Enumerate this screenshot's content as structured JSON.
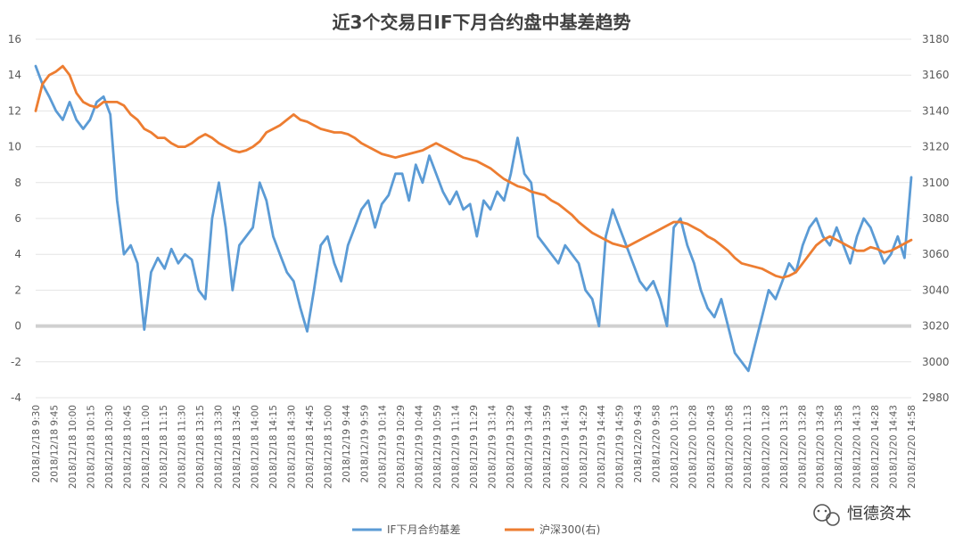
{
  "chart_data": {
    "type": "line",
    "title": "近3个交易日IF下月合约盘中基差趋势",
    "y_left": {
      "ylim": [
        -4,
        16
      ],
      "ticks": [
        -4,
        -2,
        0,
        2,
        4,
        6,
        8,
        10,
        12,
        14,
        16
      ]
    },
    "y_right": {
      "ylim": [
        2980,
        3180
      ],
      "ticks": [
        2980,
        3000,
        3020,
        3040,
        3060,
        3080,
        3100,
        3120,
        3140,
        3160,
        3180
      ]
    },
    "x_tick_labels": [
      "2018/12/18 9:30",
      "2018/12/18 9:45",
      "2018/12/18 10:00",
      "2018/12/18 10:15",
      "2018/12/18 10:30",
      "2018/12/18 10:45",
      "2018/12/18 11:00",
      "2018/12/18 11:15",
      "2018/12/18 11:30",
      "2018/12/18 13:15",
      "2018/12/18 13:30",
      "2018/12/18 13:45",
      "2018/12/18 14:00",
      "2018/12/18 14:15",
      "2018/12/18 14:30",
      "2018/12/18 14:45",
      "2018/12/18 15:00",
      "2018/12/19 9:44",
      "2018/12/19 9:59",
      "2018/12/19 10:14",
      "2018/12/19 10:29",
      "2018/12/19 10:44",
      "2018/12/19 10:59",
      "2018/12/19 11:14",
      "2018/12/19 11:29",
      "2018/12/19 13:14",
      "2018/12/19 13:29",
      "2018/12/19 13:44",
      "2018/12/19 13:59",
      "2018/12/19 14:14",
      "2018/12/19 14:29",
      "2018/12/19 14:44",
      "2018/12/19 14:59",
      "2018/12/20 9:43",
      "2018/12/20 9:58",
      "2018/12/20 10:13",
      "2018/12/20 10:28",
      "2018/12/20 10:43",
      "2018/12/20 10:58",
      "2018/12/20 11:13",
      "2018/12/20 11:28",
      "2018/12/20 13:13",
      "2018/12/20 13:28",
      "2018/12/20 13:43",
      "2018/12/20 13:58",
      "2018/12/20 14:13",
      "2018/12/20 14:28",
      "2018/12/20 14:43",
      "2018/12/20 14:58"
    ],
    "series": [
      {
        "name": "IF下月合约基差",
        "axis": "left",
        "color": "#5B9BD5",
        "values": [
          14.5,
          13.5,
          12.8,
          12.0,
          11.5,
          12.5,
          11.5,
          11.0,
          11.5,
          12.5,
          12.8,
          11.8,
          7.0,
          4.0,
          4.5,
          3.5,
          -0.2,
          3.0,
          3.8,
          3.2,
          4.3,
          3.5,
          4.0,
          3.7,
          2.0,
          1.5,
          6.0,
          8.0,
          5.5,
          2.0,
          4.5,
          5.0,
          5.5,
          8.0,
          7.0,
          5.0,
          4.0,
          3.0,
          2.5,
          1.0,
          -0.3,
          2.0,
          4.5,
          5.0,
          3.5,
          2.5,
          4.5,
          5.5,
          6.5,
          7.0,
          5.5,
          6.8,
          7.3,
          8.5,
          8.5,
          7.0,
          9.0,
          8.0,
          9.5,
          8.5,
          7.5,
          6.8,
          7.5,
          6.5,
          6.8,
          5.0,
          7.0,
          6.5,
          7.5,
          7.0,
          8.5,
          10.5,
          8.5,
          8.0,
          5.0,
          4.5,
          4.0,
          3.5,
          4.5,
          4.0,
          3.5,
          2.0,
          1.5,
          0.0,
          5.0,
          6.5,
          5.5,
          4.5,
          3.5,
          2.5,
          2.0,
          2.5,
          1.5,
          0.0,
          5.5,
          6.0,
          4.5,
          3.5,
          2.0,
          1.0,
          0.5,
          1.5,
          0.0,
          -1.5,
          -2.0,
          -2.5,
          -1.0,
          0.5,
          2.0,
          1.5,
          2.5,
          3.5,
          3.0,
          4.5,
          5.5,
          6.0,
          5.0,
          4.5,
          5.5,
          4.5,
          3.5,
          5.0,
          6.0,
          5.5,
          4.5,
          3.5,
          4.0,
          5.0,
          3.8,
          8.3
        ]
      },
      {
        "name": "沪深300(右)",
        "axis": "right",
        "color": "#ED7D31",
        "values": [
          3140,
          3155,
          3160,
          3162,
          3165,
          3160,
          3150,
          3145,
          3143,
          3142,
          3145,
          3145,
          3145,
          3143,
          3138,
          3135,
          3130,
          3128,
          3125,
          3125,
          3122,
          3120,
          3120,
          3122,
          3125,
          3127,
          3125,
          3122,
          3120,
          3118,
          3117,
          3118,
          3120,
          3123,
          3128,
          3130,
          3132,
          3135,
          3138,
          3135,
          3134,
          3132,
          3130,
          3129,
          3128,
          3128,
          3127,
          3125,
          3122,
          3120,
          3118,
          3116,
          3115,
          3114,
          3115,
          3116,
          3117,
          3118,
          3120,
          3122,
          3120,
          3118,
          3116,
          3114,
          3113,
          3112,
          3110,
          3108,
          3105,
          3102,
          3100,
          3098,
          3097,
          3095,
          3094,
          3093,
          3090,
          3088,
          3085,
          3082,
          3078,
          3075,
          3072,
          3070,
          3068,
          3066,
          3065,
          3064,
          3066,
          3068,
          3070,
          3072,
          3074,
          3076,
          3078,
          3078,
          3077,
          3075,
          3073,
          3070,
          3068,
          3065,
          3062,
          3058,
          3055,
          3054,
          3053,
          3052,
          3050,
          3048,
          3047,
          3048,
          3050,
          3055,
          3060,
          3065,
          3068,
          3070,
          3068,
          3066,
          3064,
          3062,
          3062,
          3064,
          3063,
          3061,
          3062,
          3064,
          3066,
          3068
        ]
      }
    ],
    "legend": {
      "position": "bottom"
    },
    "grid": {
      "horizontal": true
    }
  },
  "watermark": {
    "icon": "wechat-icon",
    "text": "恒德资本"
  }
}
